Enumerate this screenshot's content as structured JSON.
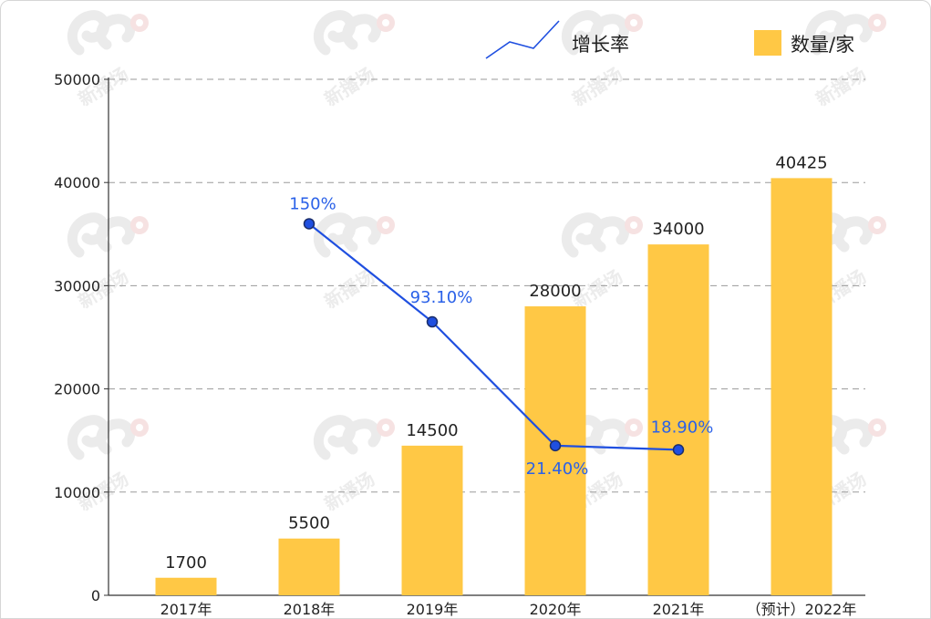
{
  "chart_data": {
    "type": "bar",
    "categories": [
      "2017年",
      "2018年",
      "2019年",
      "2020年",
      "2021年",
      "（预计）2022年"
    ],
    "series": [
      {
        "name": "数量/家",
        "type": "bar",
        "values": [
          1700,
          5500,
          14500,
          28000,
          34000,
          40425
        ],
        "labels": [
          "1700",
          "5500",
          "14500",
          "28000",
          "34000",
          "40425"
        ]
      },
      {
        "name": "增长率",
        "type": "line",
        "values": [
          null,
          150,
          93.1,
          21.4,
          18.9,
          null
        ],
        "labels": [
          null,
          "150%",
          "93.10%",
          "21.40%",
          "18.90%",
          null
        ]
      }
    ],
    "line_plotted_positions": [
      null,
      36000,
      26500,
      14500,
      14100,
      null
    ],
    "ylim": [
      0,
      50000
    ],
    "yticks": [
      "0",
      "10000",
      "20000",
      "30000",
      "40000",
      "50000"
    ],
    "grid": true,
    "legend_position": "top-right",
    "colors": {
      "bar": "#FFC845",
      "line": "#1F4FE0",
      "line_label": "#2A61E8",
      "marker_stroke": "#1B2E6B",
      "grid": "#9a9a9a",
      "text": "#222222"
    },
    "watermark": "新播场"
  }
}
